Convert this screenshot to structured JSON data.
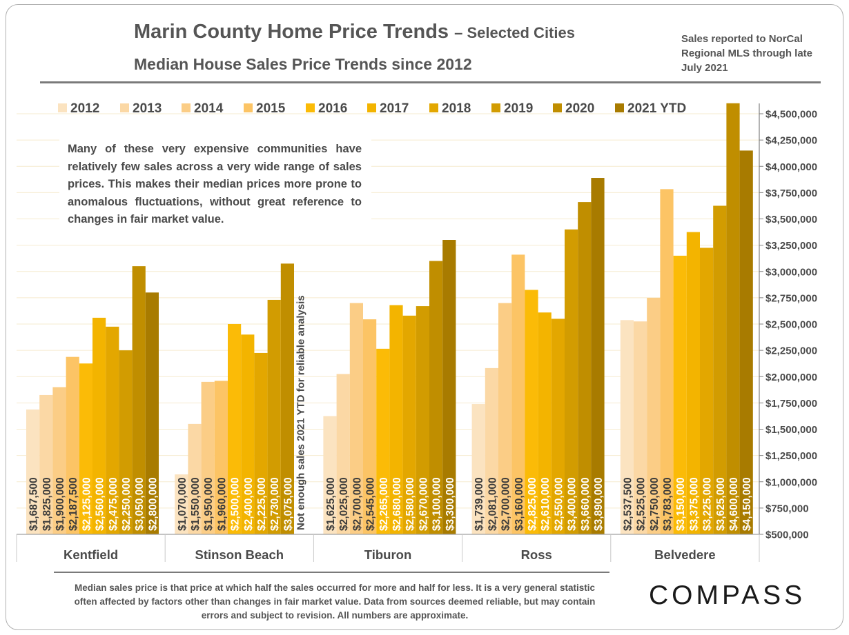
{
  "header": {
    "title": "Marin County Home Price Trends",
    "title_suffix": "– Selected Cities",
    "subtitle": "Median House Sales Price Trends since 2012",
    "note": "Sales reported to NorCal Regional MLS through late July 2021"
  },
  "callout": "Many of these very expensive communities have relatively few sales across a very wide range of sales prices. This makes their median prices more prone to anomalous fluctuations, without great reference to changes in fair market value.",
  "footer": "Median sales price is that price at which half the sales occurred for more and half for less. It is a very general statistic often affected by factors other than changes in fair market value. Data from sources deemed reliable, but may contain errors and subject to revision. All numbers are approximate.",
  "logo": "COMPASS",
  "chart_data": {
    "type": "bar",
    "categories": [
      "Kentfield",
      "Stinson Beach",
      "Tiburon",
      "Ross",
      "Belvedere"
    ],
    "series": [
      {
        "name": "2012",
        "color": "#fbe3c0",
        "values": [
          1687500,
          1070000,
          1625000,
          1739000,
          2537500
        ]
      },
      {
        "name": "2013",
        "color": "#fbd8a5",
        "values": [
          1825000,
          1550000,
          2025000,
          2081000,
          2525000
        ]
      },
      {
        "name": "2014",
        "color": "#fbcd86",
        "values": [
          1900000,
          1950000,
          2700000,
          2700000,
          2750000
        ]
      },
      {
        "name": "2015",
        "color": "#fcc465",
        "values": [
          2187500,
          1960000,
          2545000,
          3160000,
          3783000
        ]
      },
      {
        "name": "2016",
        "color": "#fbbb07",
        "values": [
          2125000,
          2500000,
          2265000,
          2825000,
          3150000
        ]
      },
      {
        "name": "2017",
        "color": "#f3b400",
        "values": [
          2560000,
          2400000,
          2680000,
          2610000,
          3375000
        ]
      },
      {
        "name": "2018",
        "color": "#e3a700",
        "values": [
          2475000,
          2225000,
          2580000,
          2550000,
          3225000
        ]
      },
      {
        "name": "2019",
        "color": "#d29c01",
        "values": [
          2250000,
          2730000,
          2670000,
          3400000,
          3625000
        ]
      },
      {
        "name": "2020",
        "color": "#c08e00",
        "values": [
          3050000,
          3075000,
          3100000,
          3660000,
          4600000
        ]
      },
      {
        "name": "2021 YTD",
        "color": "#a87b00",
        "values": [
          2800000,
          null,
          3300000,
          3890000,
          4150000
        ]
      }
    ],
    "data_labels": [
      [
        "$1,687,500",
        "$1,825,000",
        "$1,900,000",
        "$2,187,500",
        "$2,125,000",
        "$2,560,000",
        "$2,475,000",
        "$2,250,000",
        "$3,050,000",
        "$2,800,000"
      ],
      [
        "$1,070,000",
        "$1,550,000",
        "$1,950,000",
        "$1,960,000",
        "$2,500,000",
        "$2,400,000",
        "$2,225,000",
        "$2,730,000",
        "$3,075,000",
        ""
      ],
      [
        "$1,625,000",
        "$2,025,000",
        "$2,700,000",
        "$2,545,000",
        "$2,265,000",
        "$2,680,000",
        "$2,580,000",
        "$2,670,000",
        "$3,100,000",
        "$3,300,000"
      ],
      [
        "$1,739,000",
        "$2,081,000",
        "$2,700,000",
        "$3,160,000",
        "$2,825,000",
        "$2,610,000",
        "$2,550,000",
        "$3,400,000",
        "$3,660,000",
        "$3,890,000"
      ],
      [
        "$2,537,500",
        "$2,525,000",
        "$2,750,000",
        "$3,783,000",
        "$3,150,000",
        "$3,375,000",
        "$3,225,000",
        "$3,625,000",
        "$4,600,000",
        "$4,150,000"
      ]
    ],
    "ylim": [
      500000,
      4600000
    ],
    "yticks": [
      500000,
      750000,
      1000000,
      1250000,
      1500000,
      1750000,
      2000000,
      2250000,
      2500000,
      2750000,
      3000000,
      3250000,
      3500000,
      3750000,
      4000000,
      4250000,
      4500000
    ],
    "ytick_labels": [
      "$500,000",
      "$750,000",
      "$1,000,000",
      "$1,250,000",
      "$1,500,000",
      "$1,750,000",
      "$2,000,000",
      "$2,250,000",
      "$2,500,000",
      "$2,750,000",
      "$3,000,000",
      "$3,250,000",
      "$3,500,000",
      "$3,750,000",
      "$4,000,000",
      "$4,250,000",
      "$4,500,000"
    ],
    "y_axis_side": "right",
    "legend_placement": "top",
    "grid": true,
    "annotations": [
      {
        "text": "Not enough sales 2021 YTD for reliable analysis",
        "category": "Stinson Beach",
        "series": "2021 YTD"
      }
    ]
  }
}
